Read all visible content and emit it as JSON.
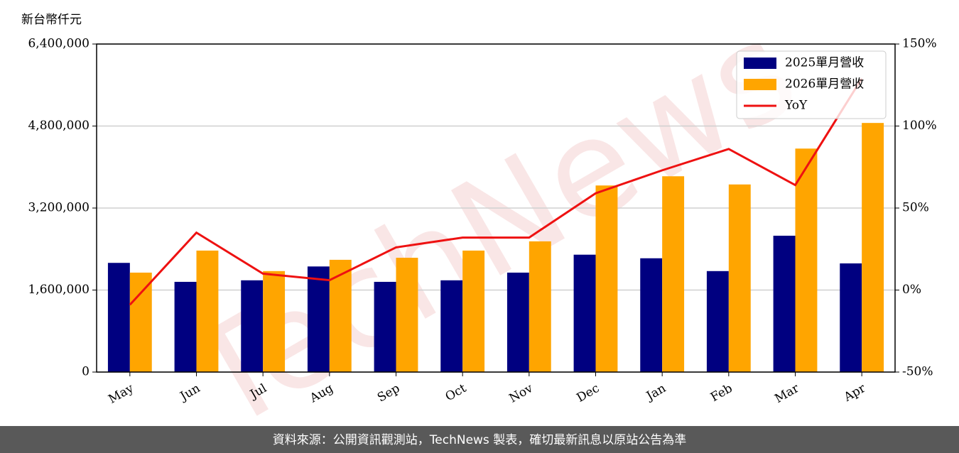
{
  "chart_data": {
    "type": "bar_line",
    "y_axis_label": "新台幣仟元",
    "categories": [
      "May",
      "Jun",
      "Jul",
      "Aug",
      "Sep",
      "Oct",
      "Nov",
      "Dec",
      "Jan",
      "Feb",
      "Mar",
      "Apr"
    ],
    "series": [
      {
        "name": "2025單月營收",
        "color": "#000080",
        "type": "bar",
        "values": [
          2130000,
          1760000,
          1790000,
          2060000,
          1760000,
          1790000,
          1940000,
          2290000,
          2220000,
          1970000,
          2660000,
          2120000
        ]
      },
      {
        "name": "2026單月營收",
        "color": "#ffa500",
        "type": "bar",
        "values": [
          1940000,
          2370000,
          1970000,
          2190000,
          2230000,
          2370000,
          2550000,
          3640000,
          3820000,
          3660000,
          4360000,
          4860000
        ]
      },
      {
        "name": "YoY",
        "color": "#ee1111",
        "type": "line",
        "axis": "y2",
        "values": [
          -9,
          35,
          10,
          6,
          26,
          32,
          32,
          59,
          73,
          86,
          64,
          129
        ]
      }
    ],
    "ylim": [
      0,
      6400000
    ],
    "yticks": [
      0,
      {
        "value": 1600000,
        "label": "1,600,000"
      },
      {
        "value": 3200000,
        "label": "3,200,000"
      },
      {
        "value": 4800000,
        "label": "4,800,000"
      },
      {
        "value": 6400000,
        "label": "6,400,000"
      }
    ],
    "y2lim": [
      -50,
      150
    ],
    "y2ticks": [
      {
        "value": -50,
        "label": "-50%"
      },
      {
        "value": 0,
        "label": "0%"
      },
      {
        "value": 50,
        "label": "50%"
      },
      {
        "value": 100,
        "label": "100%"
      },
      {
        "value": 150,
        "label": "150%"
      }
    ],
    "grid": true,
    "legend": "upper right",
    "watermark": "TechNews",
    "footer": "資料來源：公開資訊觀測站，TechNews 製表，確切最新訊息以原站公告為準"
  }
}
